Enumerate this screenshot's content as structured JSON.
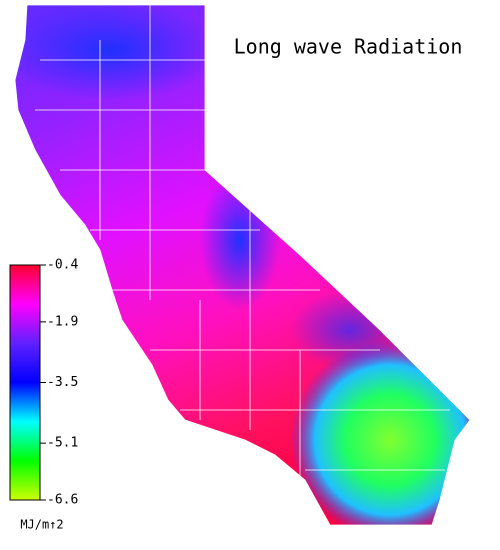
{
  "map": {
    "title": "Long wave Radiation",
    "colorbar": {
      "lim": [
        -6.6,
        -0.4
      ],
      "ticks": [
        -0.4,
        -1.9,
        -3.5,
        -5.1,
        -6.6
      ],
      "unit": "MJ/m↑2",
      "colors": [
        "#ff0030",
        "#ff00ff",
        "#6020ff",
        "#0000ff",
        "#00ffff",
        "#00ff00",
        "#ccff00"
      ]
    }
  }
}
